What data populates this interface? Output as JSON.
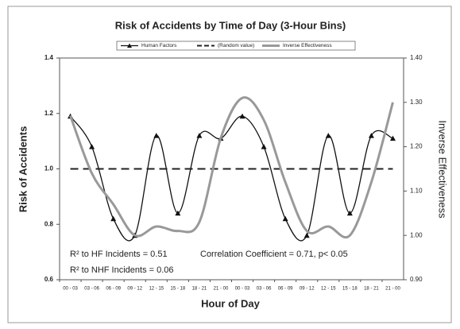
{
  "chart_data": {
    "type": "line",
    "title": "Risk of Accidents by Time of Day (3-Hour Bins)",
    "x_label": "Hour of Day",
    "y_label": "Risk of Accidents",
    "y2_label": "Inverse Effectiveness",
    "categories": [
      "00 - 03",
      "03 - 06",
      "06 - 09",
      "09 - 12",
      "12 - 15",
      "15 - 18",
      "18 - 21",
      "21 - 00",
      "00 - 03",
      "03 - 06",
      "06 - 09",
      "09 - 12",
      "12 - 15",
      "15 - 18",
      "18 - 21",
      "21 - 00"
    ],
    "series": [
      {
        "name": "Human Factors",
        "color": "#111111",
        "style": "solid-triangle",
        "values": [
          1.19,
          1.08,
          0.82,
          0.76,
          1.12,
          0.84,
          1.12,
          1.11,
          1.19,
          1.08,
          0.82,
          0.76,
          1.12,
          0.84,
          1.12,
          1.11
        ]
      },
      {
        "name": "(Random value)",
        "color": "#222222",
        "style": "dashed",
        "values": [
          1.0,
          1.0,
          1.0,
          1.0,
          1.0,
          1.0,
          1.0,
          1.0,
          1.0,
          1.0,
          1.0,
          1.0,
          1.0,
          1.0,
          1.0,
          1.0
        ]
      },
      {
        "name": "Inverse Effectiveness",
        "color": "#999999",
        "style": "thick",
        "axis": "y2",
        "values": [
          1.27,
          1.14,
          1.07,
          1.0,
          1.02,
          1.01,
          1.03,
          1.22,
          1.31,
          1.26,
          1.12,
          1.01,
          1.02,
          1.0,
          1.12,
          1.3
        ]
      }
    ],
    "ylim": [
      0.6,
      1.4
    ],
    "yticks": [
      0.6,
      0.8,
      {
        "value": 1.0,
        "label": "1.0"
      },
      1.2,
      1.4
    ],
    "y2lim": [
      0.9,
      1.4
    ],
    "y2ticks": [
      {
        "value": 0.9,
        "label": "0.90"
      },
      {
        "value": 1.0,
        "label": "1.00"
      },
      {
        "value": 1.1,
        "label": "1.10"
      },
      {
        "value": 1.2,
        "label": "1.20"
      },
      {
        "value": 1.3,
        "label": "1.30"
      },
      {
        "value": 1.4,
        "label": "1.40"
      }
    ],
    "annotations": [
      "R² to HF  Incidents = 0.51",
      "R² to NHF Incidents = 0.06",
      "Correlation Coefficient = 0.71, p< 0.05"
    ],
    "legend": "top"
  }
}
